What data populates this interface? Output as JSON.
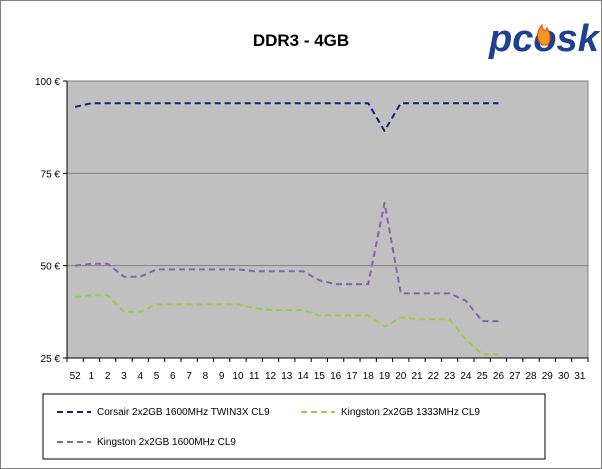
{
  "logo": {
    "text": "pcosk"
  },
  "colors": {
    "plot_bg": "#c0c0c0",
    "gridline": "#808080",
    "series": [
      "#1c1c7e",
      "#9acd45",
      "#8066b0"
    ]
  },
  "chart_data": {
    "type": "line",
    "title": "DDR3 - 4GB",
    "xlabel": "",
    "ylabel": "",
    "categories": [
      "52",
      "1",
      "2",
      "3",
      "4",
      "5",
      "6",
      "7",
      "8",
      "9",
      "10",
      "11",
      "12",
      "13",
      "14",
      "15",
      "16",
      "17",
      "18",
      "19",
      "20",
      "21",
      "22",
      "23",
      "24",
      "25",
      "26",
      "27",
      "28",
      "29",
      "30",
      "31"
    ],
    "ylim": [
      25,
      100
    ],
    "yticks": [
      {
        "value": 25,
        "label": "25 €"
      },
      {
        "value": 50,
        "label": "50 €"
      },
      {
        "value": 75,
        "label": "75 €"
      },
      {
        "value": 100,
        "label": "100 €"
      }
    ],
    "grid": true,
    "legend_position": "bottom",
    "series": [
      {
        "name": "Corsair 2x2GB 1600MHz TWIN3X CL9",
        "values": [
          93,
          94,
          94,
          94,
          94,
          94,
          94,
          94,
          94,
          94,
          94,
          94,
          94,
          94,
          94,
          94,
          94,
          94,
          94,
          86.5,
          94,
          94,
          94,
          94,
          94,
          94,
          94,
          null,
          null,
          null,
          null,
          null
        ]
      },
      {
        "name": "Kingston 2x2GB 1333MHz CL9",
        "values": [
          41.5,
          42,
          42,
          37.5,
          37.5,
          39.5,
          39.5,
          39.5,
          39.5,
          39.5,
          39.5,
          38.5,
          38,
          38,
          38,
          36.5,
          36.5,
          36.5,
          36.5,
          33.5,
          36,
          35.5,
          35.5,
          35.5,
          30,
          26,
          26,
          null,
          null,
          null,
          null,
          null
        ]
      },
      {
        "name": "Kingston 2x2GB 1600MHz CL9",
        "values": [
          50,
          50.5,
          50.5,
          47,
          47,
          49,
          49,
          49,
          49,
          49,
          49,
          48.5,
          48.5,
          48.5,
          48.5,
          46,
          45,
          45,
          45,
          67,
          42.5,
          42.5,
          42.5,
          42.5,
          40.5,
          35,
          35,
          null,
          null,
          null,
          null,
          null
        ]
      }
    ]
  }
}
